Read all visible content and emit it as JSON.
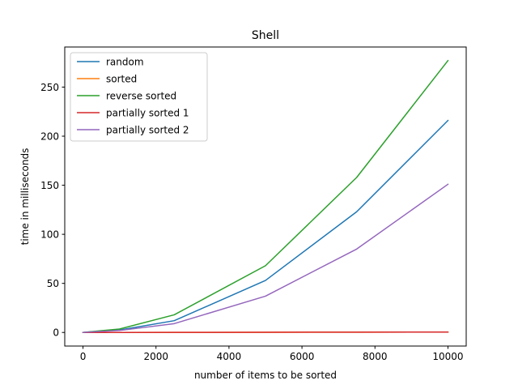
{
  "chart_data": {
    "type": "line",
    "title": "Shell",
    "xlabel": "number of items to be sorted",
    "ylabel": "time in milliseconds",
    "xlim": [
      -500,
      10500
    ],
    "ylim": [
      -13.85,
      290.85
    ],
    "xticks": [
      0,
      2000,
      4000,
      6000,
      8000,
      10000
    ],
    "yticks": [
      0,
      50,
      100,
      150,
      200,
      250
    ],
    "x": [
      0,
      100,
      1000,
      2500,
      5000,
      7500,
      10000
    ],
    "legend_position": "upper-left",
    "grid": false,
    "series": [
      {
        "name": "random",
        "color": "#1f77b4",
        "values": [
          0,
          0.3,
          2.5,
          12,
          53,
          123,
          216
        ]
      },
      {
        "name": "sorted",
        "color": "#ff7f0e",
        "values": [
          0,
          0,
          0,
          0.1,
          0.2,
          0.3,
          0.4
        ]
      },
      {
        "name": "reverse sorted",
        "color": "#2ca02c",
        "values": [
          0,
          0.4,
          3.5,
          18,
          68,
          158,
          277
        ]
      },
      {
        "name": "partially sorted 1",
        "color": "#d62728",
        "values": [
          0,
          0,
          0,
          0.1,
          0.2,
          0.3,
          0.4
        ]
      },
      {
        "name": "partially sorted 2",
        "color": "#9467bd",
        "values": [
          0,
          0.3,
          2,
          9,
          37,
          85,
          151
        ]
      }
    ]
  }
}
